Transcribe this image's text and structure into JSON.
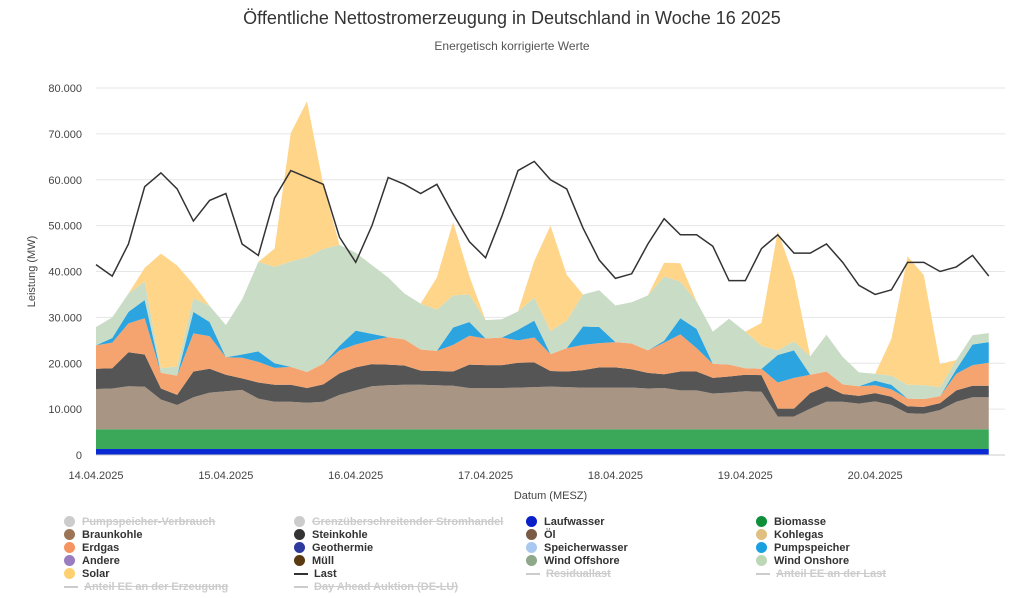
{
  "header": {
    "title": "Öffentliche Nettostromerzeugung in Deutschland in Woche 16 2025",
    "subtitle": "Energetisch korrigierte Werte"
  },
  "chart_data": {
    "type": "area",
    "title": "Öffentliche Nettostromerzeugung in Deutschland in Woche 16 2025",
    "subtitle": "Energetisch korrigierte Werte",
    "xlabel": "Datum (MESZ)",
    "ylabel": "Leistung (MW)",
    "stacked": true,
    "ylim": [
      0,
      80000
    ],
    "yticks": [
      0,
      10000,
      20000,
      30000,
      40000,
      50000,
      60000,
      70000,
      80000
    ],
    "ytick_labels": [
      "0",
      "10.000",
      "20.000",
      "30.000",
      "40.000",
      "50.000",
      "60.000",
      "70.000",
      "80.000"
    ],
    "xlim": [
      0,
      168
    ],
    "x_unit": "hours from 14.04.2025 00:00",
    "xticks": [
      0,
      24,
      48,
      72,
      96,
      120,
      144
    ],
    "xtick_labels": [
      "14.04.2025",
      "15.04.2025",
      "16.04.2025",
      "17.04.2025",
      "18.04.2025",
      "19.04.2025",
      "20.04.2025"
    ],
    "grid": "horizontal",
    "legend_position": "bottom",
    "series_note": "Approximate values read from the chart, sampled every 3 hours (0..165).",
    "series": [
      {
        "name": "Laufwasser",
        "color": "#0a2ad4",
        "values": [
          1300,
          1300,
          1300,
          1300,
          1300,
          1300,
          1300,
          1300,
          1300,
          1300,
          1300,
          1300,
          1300,
          1300,
          1300,
          1300,
          1300,
          1300,
          1300,
          1300,
          1300,
          1300,
          1300,
          1300,
          1300,
          1300,
          1300,
          1300,
          1300,
          1300,
          1300,
          1300,
          1300,
          1300,
          1300,
          1300,
          1300,
          1300,
          1300,
          1300,
          1300,
          1300,
          1300,
          1300,
          1300,
          1300,
          1300,
          1300,
          1300,
          1300,
          1300,
          1300,
          1300,
          1300,
          1300,
          1300
        ]
      },
      {
        "name": "Biomasse",
        "color": "#3aa858",
        "values": [
          4300,
          4300,
          4300,
          4300,
          4300,
          4300,
          4300,
          4300,
          4300,
          4300,
          4300,
          4300,
          4300,
          4300,
          4300,
          4300,
          4300,
          4300,
          4300,
          4300,
          4300,
          4300,
          4300,
          4300,
          4300,
          4300,
          4300,
          4300,
          4300,
          4300,
          4300,
          4300,
          4300,
          4300,
          4300,
          4300,
          4300,
          4300,
          4300,
          4300,
          4300,
          4300,
          4300,
          4300,
          4300,
          4300,
          4300,
          4300,
          4300,
          4300,
          4300,
          4300,
          4300,
          4300,
          4300,
          4300
        ]
      },
      {
        "name": "Braunkohle",
        "color": "#a89584",
        "values": [
          8800,
          8900,
          9400,
          9300,
          6500,
          5300,
          7000,
          8000,
          8300,
          8600,
          6700,
          6000,
          6000,
          5800,
          6000,
          7500,
          8500,
          9400,
          9600,
          9700,
          9700,
          9600,
          9500,
          9000,
          9000,
          9000,
          9100,
          9200,
          9300,
          9200,
          9100,
          9100,
          9100,
          9100,
          8900,
          9000,
          8500,
          8500,
          7800,
          8000,
          8300,
          8200,
          2800,
          2800,
          4500,
          6000,
          6000,
          5600,
          6100,
          5300,
          3500,
          3400,
          4200,
          6000,
          7000,
          7000
        ]
      },
      {
        "name": "Steinkohle",
        "color": "#555555",
        "values": [
          4400,
          4400,
          7400,
          7000,
          2400,
          2200,
          5600,
          5200,
          3600,
          2500,
          3500,
          3700,
          3700,
          3200,
          3800,
          4700,
          5000,
          4800,
          4500,
          4200,
          3100,
          3100,
          3100,
          5100,
          5000,
          5000,
          5400,
          5400,
          3400,
          3400,
          3800,
          4400,
          4400,
          4000,
          3400,
          3000,
          4100,
          4100,
          3400,
          3500,
          3600,
          3600,
          1700,
          1700,
          3400,
          3400,
          1700,
          1700,
          1800,
          1800,
          1500,
          1500,
          1500,
          2500,
          2500,
          2500
        ]
      },
      {
        "name": "Erdgas",
        "color": "#f5a470",
        "values": [
          5100,
          5600,
          6300,
          7900,
          3400,
          4200,
          8300,
          7100,
          3800,
          4500,
          4500,
          3700,
          3900,
          3500,
          4500,
          5000,
          5000,
          5200,
          6000,
          5700,
          4600,
          4400,
          5800,
          6300,
          5800,
          6000,
          4900,
          5400,
          3700,
          5100,
          5500,
          5300,
          5500,
          5600,
          4900,
          6900,
          8100,
          5100,
          3100,
          2600,
          1400,
          1400,
          5700,
          6700,
          4000,
          3200,
          2100,
          2100,
          1700,
          1600,
          1700,
          1700,
          1500,
          3600,
          4500,
          5000
        ]
      },
      {
        "name": "Pumpspeicher",
        "color": "#2ba4e0",
        "values": [
          0,
          1000,
          2500,
          4000,
          0,
          0,
          4700,
          3100,
          0,
          700,
          2300,
          1000,
          0,
          0,
          0,
          1000,
          3000,
          1400,
          0,
          0,
          0,
          0,
          3800,
          3000,
          0,
          0,
          2300,
          3700,
          0,
          0,
          4000,
          3500,
          0,
          0,
          0,
          400,
          3500,
          4200,
          0,
          0,
          0,
          0,
          6000,
          6000,
          0,
          0,
          0,
          0,
          1000,
          1000,
          0,
          0,
          0,
          1000,
          4500,
          4500
        ]
      },
      {
        "name": "Wind Onshore",
        "color": "#c9dcc5",
        "values": [
          4000,
          4500,
          4000,
          4000,
          1000,
          2000,
          3000,
          3500,
          7000,
          12000,
          19500,
          21000,
          23000,
          25000,
          25000,
          22000,
          17000,
          15000,
          13000,
          10000,
          10000,
          9000,
          7000,
          6000,
          4000,
          4000,
          4000,
          5000,
          5000,
          6000,
          7000,
          8000,
          8000,
          9000,
          12000,
          14000,
          8000,
          6000,
          7000,
          10000,
          8000,
          5000,
          1000,
          2000,
          4000,
          8000,
          6000,
          3000,
          1500,
          2000,
          3000,
          3000,
          2000,
          2000,
          2000,
          2000
        ]
      },
      {
        "name": "Solar",
        "color": "#ffd58a",
        "values": [
          0,
          0,
          0,
          3000,
          25000,
          22000,
          3000,
          0,
          0,
          0,
          0,
          4000,
          28000,
          34000,
          14000,
          0,
          0,
          0,
          0,
          0,
          0,
          7000,
          16000,
          4000,
          0,
          0,
          0,
          8000,
          23000,
          10000,
          0,
          0,
          0,
          0,
          0,
          3000,
          4000,
          0,
          0,
          0,
          0,
          5000,
          26000,
          14000,
          0,
          0,
          0,
          0,
          0,
          8000,
          28000,
          24000,
          5000,
          0,
          0,
          0
        ]
      },
      {
        "name": "Last",
        "color": "#333333",
        "kind": "line",
        "values": [
          41500,
          39000,
          46000,
          58500,
          61500,
          58000,
          51000,
          55500,
          57000,
          46000,
          43500,
          56000,
          62000,
          60500,
          59000,
          47500,
          42000,
          50000,
          60500,
          59000,
          57000,
          59000,
          52500,
          46500,
          43000,
          52000,
          62000,
          64000,
          60000,
          58000,
          49500,
          42500,
          38500,
          39500,
          46000,
          51500,
          48000,
          48000,
          45500,
          38000,
          38000,
          45000,
          48000,
          44000,
          44000,
          46000,
          42000,
          37000,
          35000,
          36000,
          42000,
          42000,
          40000,
          41000,
          43500,
          39000
        ]
      }
    ],
    "legend": [
      {
        "name": "Pumpspeicher-Verbrauch",
        "color": "#cccccc",
        "visible": false,
        "marker": "dot"
      },
      {
        "name": "Grenzüberschreitender Stromhandel",
        "color": "#cccccc",
        "visible": false,
        "marker": "dot"
      },
      {
        "name": "Laufwasser",
        "color": "#0a1fc8",
        "visible": true,
        "marker": "dot"
      },
      {
        "name": "Biomasse",
        "color": "#0f8f3a",
        "visible": true,
        "marker": "dot"
      },
      {
        "name": "Braunkohle",
        "color": "#9c7556",
        "visible": true,
        "marker": "dot"
      },
      {
        "name": "Steinkohle",
        "color": "#333333",
        "visible": true,
        "marker": "dot"
      },
      {
        "name": "Öl",
        "color": "#7a5a44",
        "visible": true,
        "marker": "dot"
      },
      {
        "name": "Kohlegas",
        "color": "#e0c080",
        "visible": true,
        "marker": "dot"
      },
      {
        "name": "Erdgas",
        "color": "#f59460",
        "visible": true,
        "marker": "dot"
      },
      {
        "name": "Geothermie",
        "color": "#2e3a9e",
        "visible": true,
        "marker": "dot"
      },
      {
        "name": "Speicherwasser",
        "color": "#a9c8f0",
        "visible": true,
        "marker": "dot"
      },
      {
        "name": "Pumpspeicher",
        "color": "#1aa0e0",
        "visible": true,
        "marker": "dot"
      },
      {
        "name": "Andere",
        "color": "#9a7cc0",
        "visible": true,
        "marker": "dot"
      },
      {
        "name": "Müll",
        "color": "#5a3a10",
        "visible": true,
        "marker": "dot"
      },
      {
        "name": "Wind Offshore",
        "color": "#8fa88a",
        "visible": true,
        "marker": "dot"
      },
      {
        "name": "Wind Onshore",
        "color": "#bcd7b6",
        "visible": true,
        "marker": "dot"
      },
      {
        "name": "Solar",
        "color": "#ffd070",
        "visible": true,
        "marker": "dot"
      },
      {
        "name": "Last",
        "color": "#333333",
        "visible": true,
        "marker": "line"
      },
      {
        "name": "Residuallast",
        "color": "#cccccc",
        "visible": false,
        "marker": "line"
      },
      {
        "name": "Anteil EE an der Last",
        "color": "#cccccc",
        "visible": false,
        "marker": "line"
      },
      {
        "name": "Anteil EE an der Erzeugung",
        "color": "#cccccc",
        "visible": false,
        "marker": "line"
      },
      {
        "name": "Day Ahead Auktion (DE-LU)",
        "color": "#cccccc",
        "visible": false,
        "marker": "line"
      }
    ]
  }
}
